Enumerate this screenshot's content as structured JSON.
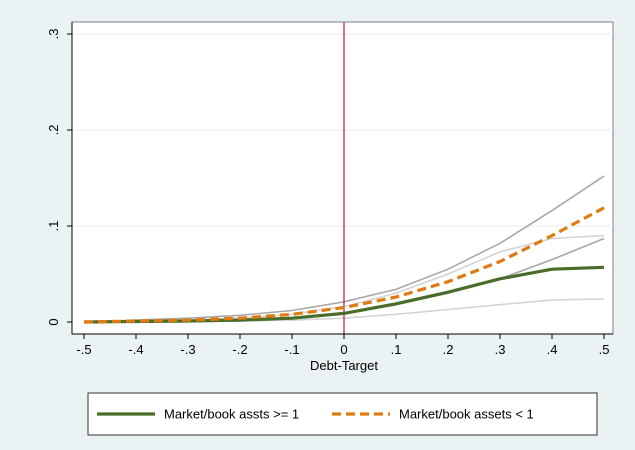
{
  "chart_data": {
    "type": "line",
    "title": "",
    "xlabel": "Debt-Target",
    "ylabel": "",
    "xlim": [
      -0.5,
      0.5
    ],
    "ylim": [
      0,
      0.3
    ],
    "x_ticks": [
      -0.5,
      -0.4,
      -0.3,
      -0.2,
      -0.1,
      0,
      0.1,
      0.2,
      0.3,
      0.4,
      0.5
    ],
    "x_tick_labels": [
      "-.5",
      "-.4",
      "-.3",
      "-.2",
      "-.1",
      "0",
      ".1",
      ".2",
      ".3",
      ".4",
      ".5"
    ],
    "y_ticks": [
      0,
      0.1,
      0.2,
      0.3
    ],
    "y_tick_labels": [
      "0",
      ".1",
      ".2",
      ".3"
    ],
    "grid": true,
    "legend_position": "bottom",
    "reference_line": {
      "x": 0,
      "color": "#c0143c"
    },
    "x": [
      -0.5,
      -0.4,
      -0.3,
      -0.2,
      -0.1,
      0,
      0.1,
      0.2,
      0.3,
      0.4,
      0.5
    ],
    "series": [
      {
        "name": "Market/book assts >= 1",
        "color": "#4a6e2a",
        "style": "solid",
        "values": [
          0.0,
          0.0005,
          0.001,
          0.002,
          0.004,
          0.009,
          0.019,
          0.031,
          0.045,
          0.055,
          0.057
        ]
      },
      {
        "name": "Market/book assets < 1",
        "color": "#e07b12",
        "style": "dashed",
        "values": [
          0.0,
          0.001,
          0.002,
          0.004,
          0.008,
          0.015,
          0.026,
          0.042,
          0.063,
          0.09,
          0.119
        ]
      }
    ],
    "bands": [
      {
        "color": "#a8a8a8",
        "upper": [
          0.0,
          0.002,
          0.004,
          0.007,
          0.012,
          0.021,
          0.034,
          0.055,
          0.082,
          0.116,
          0.152
        ],
        "lower": [
          0.0,
          0.0005,
          0.001,
          0.002,
          0.004,
          0.009,
          0.018,
          0.03,
          0.045,
          0.065,
          0.087
        ]
      },
      {
        "color": "#d4d4d4",
        "upper": [
          0.0,
          0.001,
          0.002,
          0.004,
          0.008,
          0.016,
          0.03,
          0.05,
          0.073,
          0.087,
          0.09
        ],
        "lower": [
          0.0,
          0.0,
          0.0005,
          0.001,
          0.002,
          0.004,
          0.008,
          0.013,
          0.018,
          0.023,
          0.024
        ]
      }
    ]
  }
}
